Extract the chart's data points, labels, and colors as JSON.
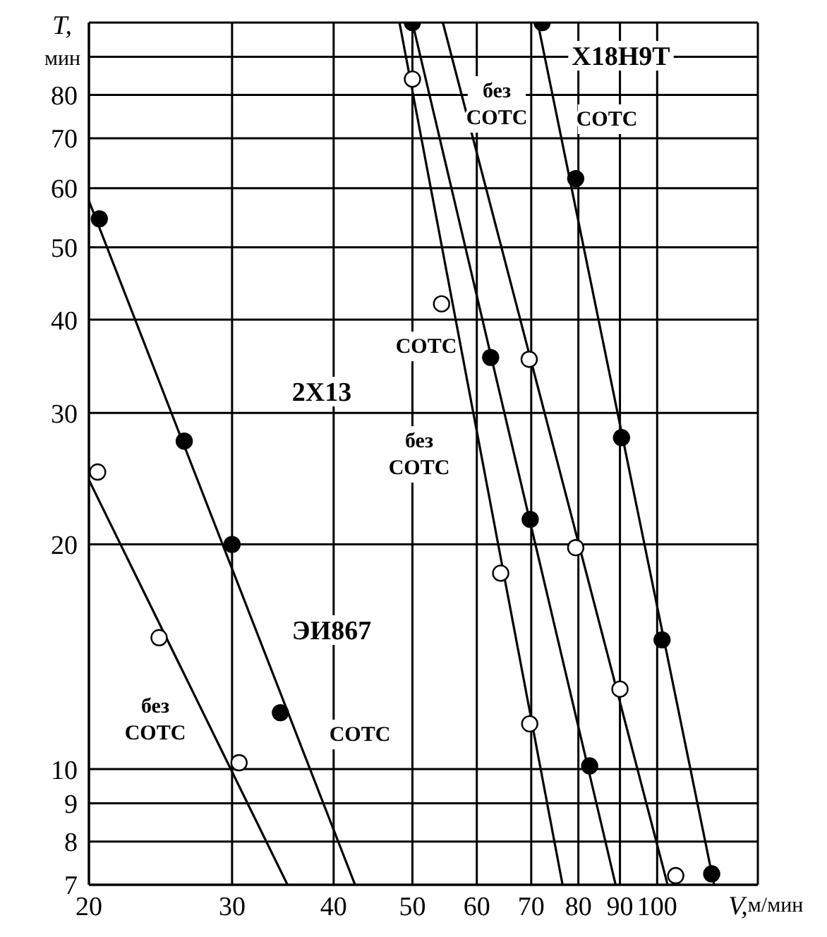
{
  "chart_data": {
    "type": "scatter",
    "xlabel": "V,м/мин",
    "ylabel": "T, мин",
    "log": "xy",
    "grid": true,
    "marker": "circle",
    "legend": false,
    "xlim": [
      20,
      133
    ],
    "xticks": [
      20,
      30,
      40,
      50,
      60,
      70,
      80,
      90,
      100
    ],
    "ylim": [
      7,
      100
    ],
    "yticks": [
      7,
      8,
      9,
      10,
      20,
      30,
      40,
      50,
      60,
      70,
      80,
      {
        "value": 90,
        "label": null
      },
      {
        "value": 100,
        "label": null
      }
    ],
    "series": [
      {
        "type": "line",
        "marker": "none",
        "color": "#000000",
        "x": [
          20,
          42.5
        ],
        "values": [
          57.7,
          7
        ]
      },
      {
        "type": "line",
        "marker": "none",
        "color": "#000000",
        "x": [
          20,
          35.1
        ],
        "values": [
          24.4,
          7
        ]
      },
      {
        "type": "line",
        "marker": "none",
        "color": "#000000",
        "x": [
          48.2,
          76.5
        ],
        "values": [
          100,
          7
        ]
      },
      {
        "type": "line",
        "marker": "none",
        "color": "#000000",
        "x": [
          50,
          88.9
        ],
        "values": [
          100,
          7
        ]
      },
      {
        "type": "line",
        "marker": "none",
        "color": "#000000",
        "x": [
          54.5,
          103
        ],
        "values": [
          100,
          7
        ]
      },
      {
        "type": "line",
        "marker": "none",
        "color": "#000000",
        "x": [
          71.3,
          117.5
        ],
        "values": [
          100,
          7
        ]
      },
      {
        "color": "#000000",
        "x": [
          20.6,
          26.2,
          30,
          34.4
        ],
        "values": [
          54.6,
          27.5,
          20,
          11.9
        ]
      },
      {
        "color": "#ffffff",
        "x": [
          20.5,
          24.4,
          30.6
        ],
        "values": [
          25,
          15,
          10.2
        ]
      },
      {
        "color": "#ffffff",
        "x": [
          50,
          54.3,
          64.2,
          69.7
        ],
        "values": [
          84,
          42,
          18.3,
          11.5
        ]
      },
      {
        "color": "#000000",
        "x": [
          50,
          62.4,
          69.8,
          82.6
        ],
        "values": [
          100,
          35.6,
          21.6,
          10.1
        ]
      },
      {
        "color": "#ffffff",
        "x": [
          69.6,
          79.4,
          90,
          105.4
        ],
        "values": [
          35.4,
          19.8,
          12.8,
          7.2
        ]
      },
      {
        "color": "#000000",
        "x": [
          72.2,
          79.4,
          90.4,
          101.4,
          116.7
        ],
        "values": [
          100,
          61.8,
          27.8,
          14.9,
          7.24
        ]
      }
    ],
    "annotations": [
      "Х18Н9Т",
      "без СОТС",
      "СОТС",
      "СОТС",
      "2Х13",
      "без СОТС",
      "ЭИ867",
      "без СОТС",
      "СОТС"
    ]
  }
}
